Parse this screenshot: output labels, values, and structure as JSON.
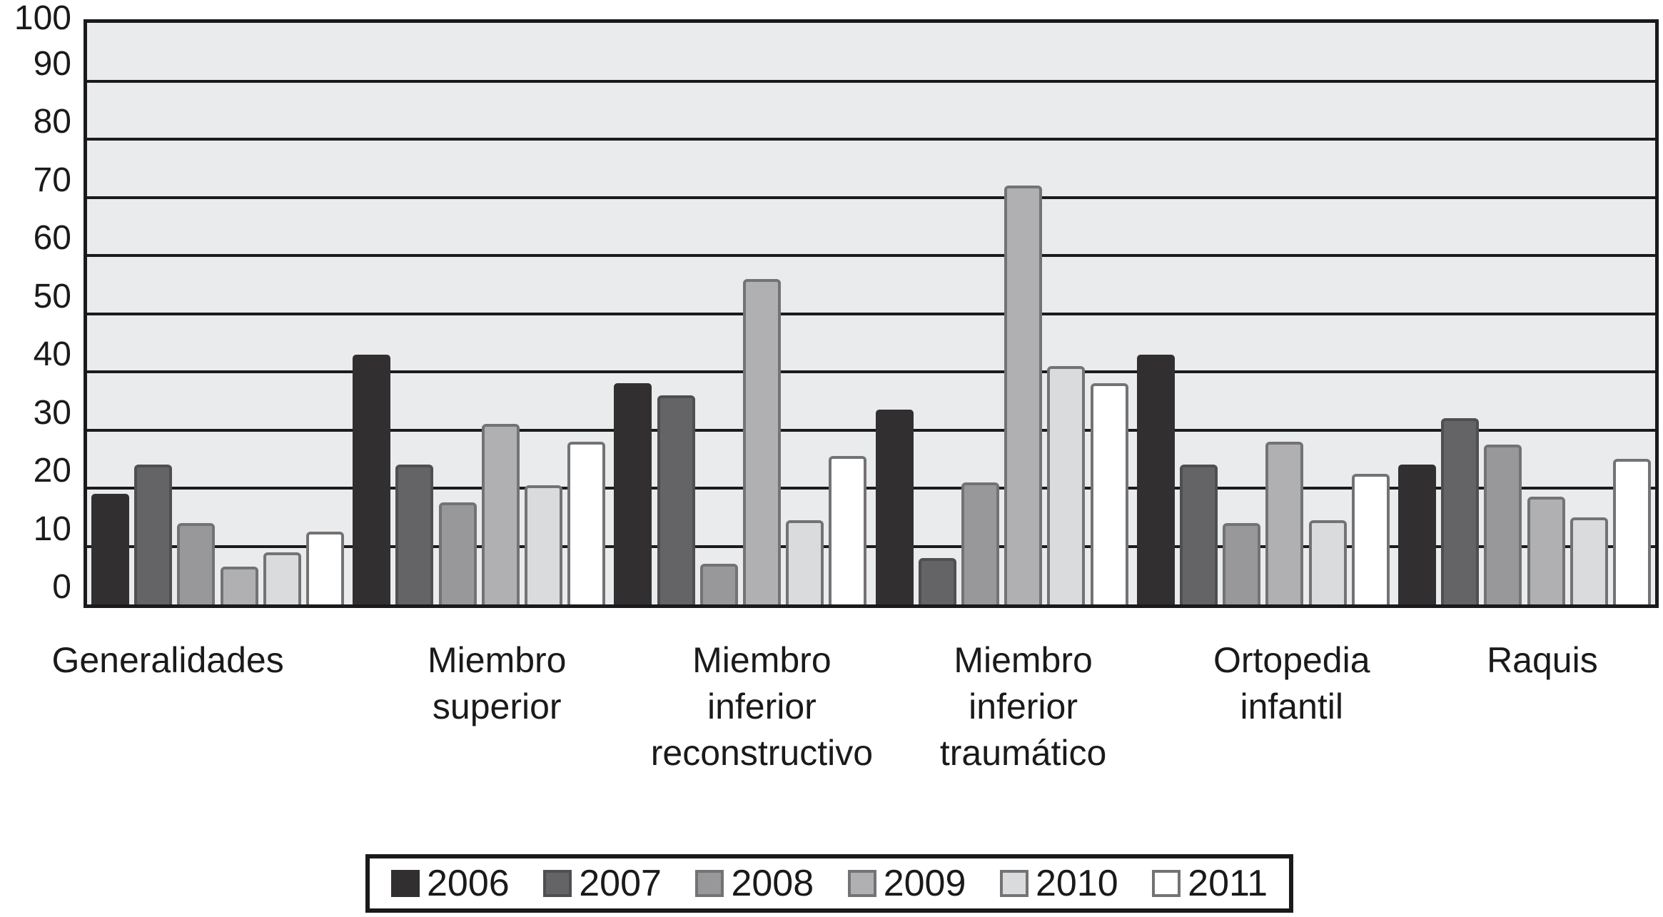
{
  "figure": {
    "description": "Grouped grayscale bar chart, years 2006-2011 across six orthopedic topic categories, scale 0-100"
  },
  "chart_data": {
    "type": "bar",
    "title": "",
    "xlabel": "",
    "ylabel": "",
    "ylim": [
      0,
      100
    ],
    "grid": "horizontal",
    "legend_position": "bottom",
    "plot_bg_color": "#e9ebed",
    "grid_color": "#1b1b1d",
    "frame_color": "#1a1a1c",
    "text_color": "#1a1a1a",
    "y_ticks": [
      0,
      10,
      20,
      30,
      40,
      50,
      60,
      70,
      80,
      90,
      100
    ],
    "categories": [
      "Generalidades",
      "Miembro superior",
      "Miembro inferior reconstructivo",
      "Miembro inferior traumático",
      "Ortopedia infantil",
      "Raquis"
    ],
    "category_label_lines": [
      [
        "Generalidades"
      ],
      [
        "Miembro",
        "superior"
      ],
      [
        "Miembro",
        "inferior",
        "reconstructivo"
      ],
      [
        "Miembro",
        "inferior",
        "traumático"
      ],
      [
        "Ortopedia",
        "infantil"
      ],
      [
        "Raquis"
      ]
    ],
    "series": [
      {
        "name": "2006",
        "fill": "#312f30",
        "border": "#312f30",
        "values": [
          19,
          43,
          38,
          33.5,
          43,
          24
        ]
      },
      {
        "name": "2007",
        "fill": "#646466",
        "border": "#4f4f51",
        "values": [
          24,
          24,
          36,
          8,
          24,
          32
        ]
      },
      {
        "name": "2008",
        "fill": "#98989a",
        "border": "#737375",
        "values": [
          14,
          17.5,
          7,
          21,
          14,
          27.5
        ]
      },
      {
        "name": "2009",
        "fill": "#b0b0b2",
        "border": "#737375",
        "values": [
          6.5,
          31,
          56,
          72,
          28,
          18.5
        ]
      },
      {
        "name": "2010",
        "fill": "#d9dbdd",
        "border": "#737375",
        "values": [
          9,
          20.5,
          14.5,
          41,
          14.5,
          15
        ]
      },
      {
        "name": "2011",
        "fill": "#ffffff",
        "border": "#737375",
        "values": [
          12.5,
          28,
          25.5,
          38,
          22.5,
          25
        ]
      }
    ]
  }
}
